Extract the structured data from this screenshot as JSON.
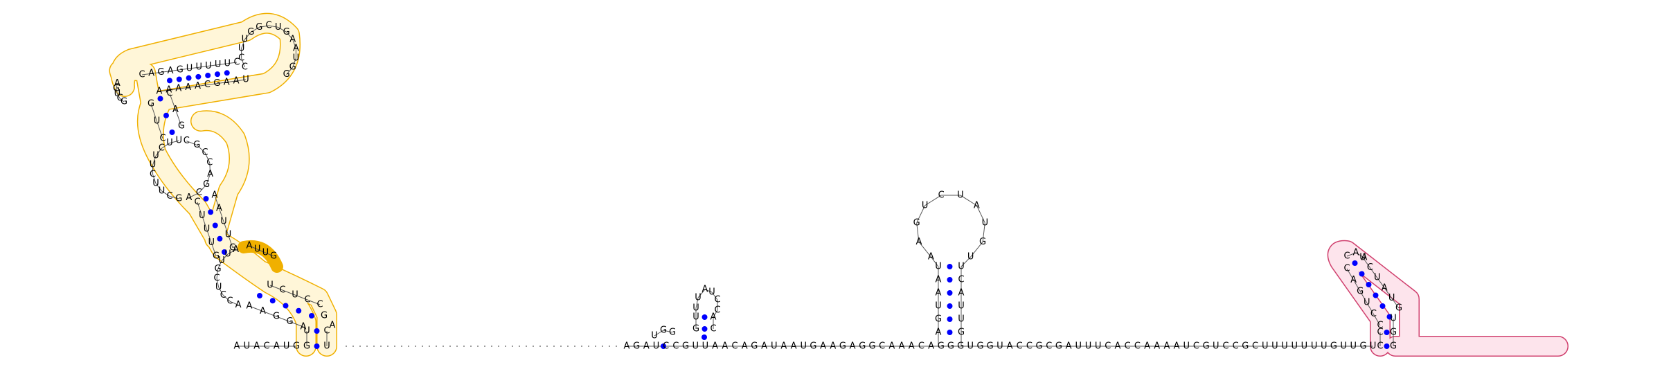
{
  "colors": {
    "background": "#ffffff",
    "base": "#000000",
    "backbone": "#555555",
    "base_pair": "#0000ff",
    "highlight_region_1_stroke": "#f0b000",
    "highlight_region_1_fill": "#fff6d8",
    "highlight_region_1_accent": "#f0b000",
    "highlight_region_2_stroke": "#d0406e",
    "highlight_region_2_fill": "#fde4ec"
  },
  "sequence": {
    "five_prime_segment": "AUACAUG",
    "baseline_segment": "AGAUCCGUUAACAGAUAAUGAAGAGGCAAACAGGGUGGUACCGCGAUUUCACCAAAAUCGUCCGCUUUUUUUGUUGU"
  },
  "helix_1": {
    "outer_loop": "CCUUGGCUGAAUGG",
    "strand_5": "CAGAGUUUUUC",
    "strand_3": "AAAAACGAAU",
    "upper_stem_5": "CAGUCG",
    "upper_stem_3": "CCGACGC",
    "middle_loop": "UUCUUCUUCG",
    "middle_stem_5": "CUUUG",
    "middle_stem_3": "AAUUG",
    "lower_internal_loop": "AUUGCUCCA",
    "lower_stem_5": "AUGAU",
    "lower_stem_3": "GAAGG",
    "closing_pair": "UC"
  },
  "hairpin_2": {
    "loop": "UAUC",
    "stem_5": "UU",
    "stem_3": "AC",
    "bulge": "UGG"
  },
  "hairpin_3": {
    "loop": "AAGUCUAUGU",
    "stem_5": "AGUAAU",
    "stem_3": "UCAUUG"
  },
  "helix_4": {
    "loop": "CAAUC",
    "stem_5": "GAGUCC",
    "stem_3": "UUAUGG",
    "tail": "GCUUUUUUUGUUGU"
  }
}
